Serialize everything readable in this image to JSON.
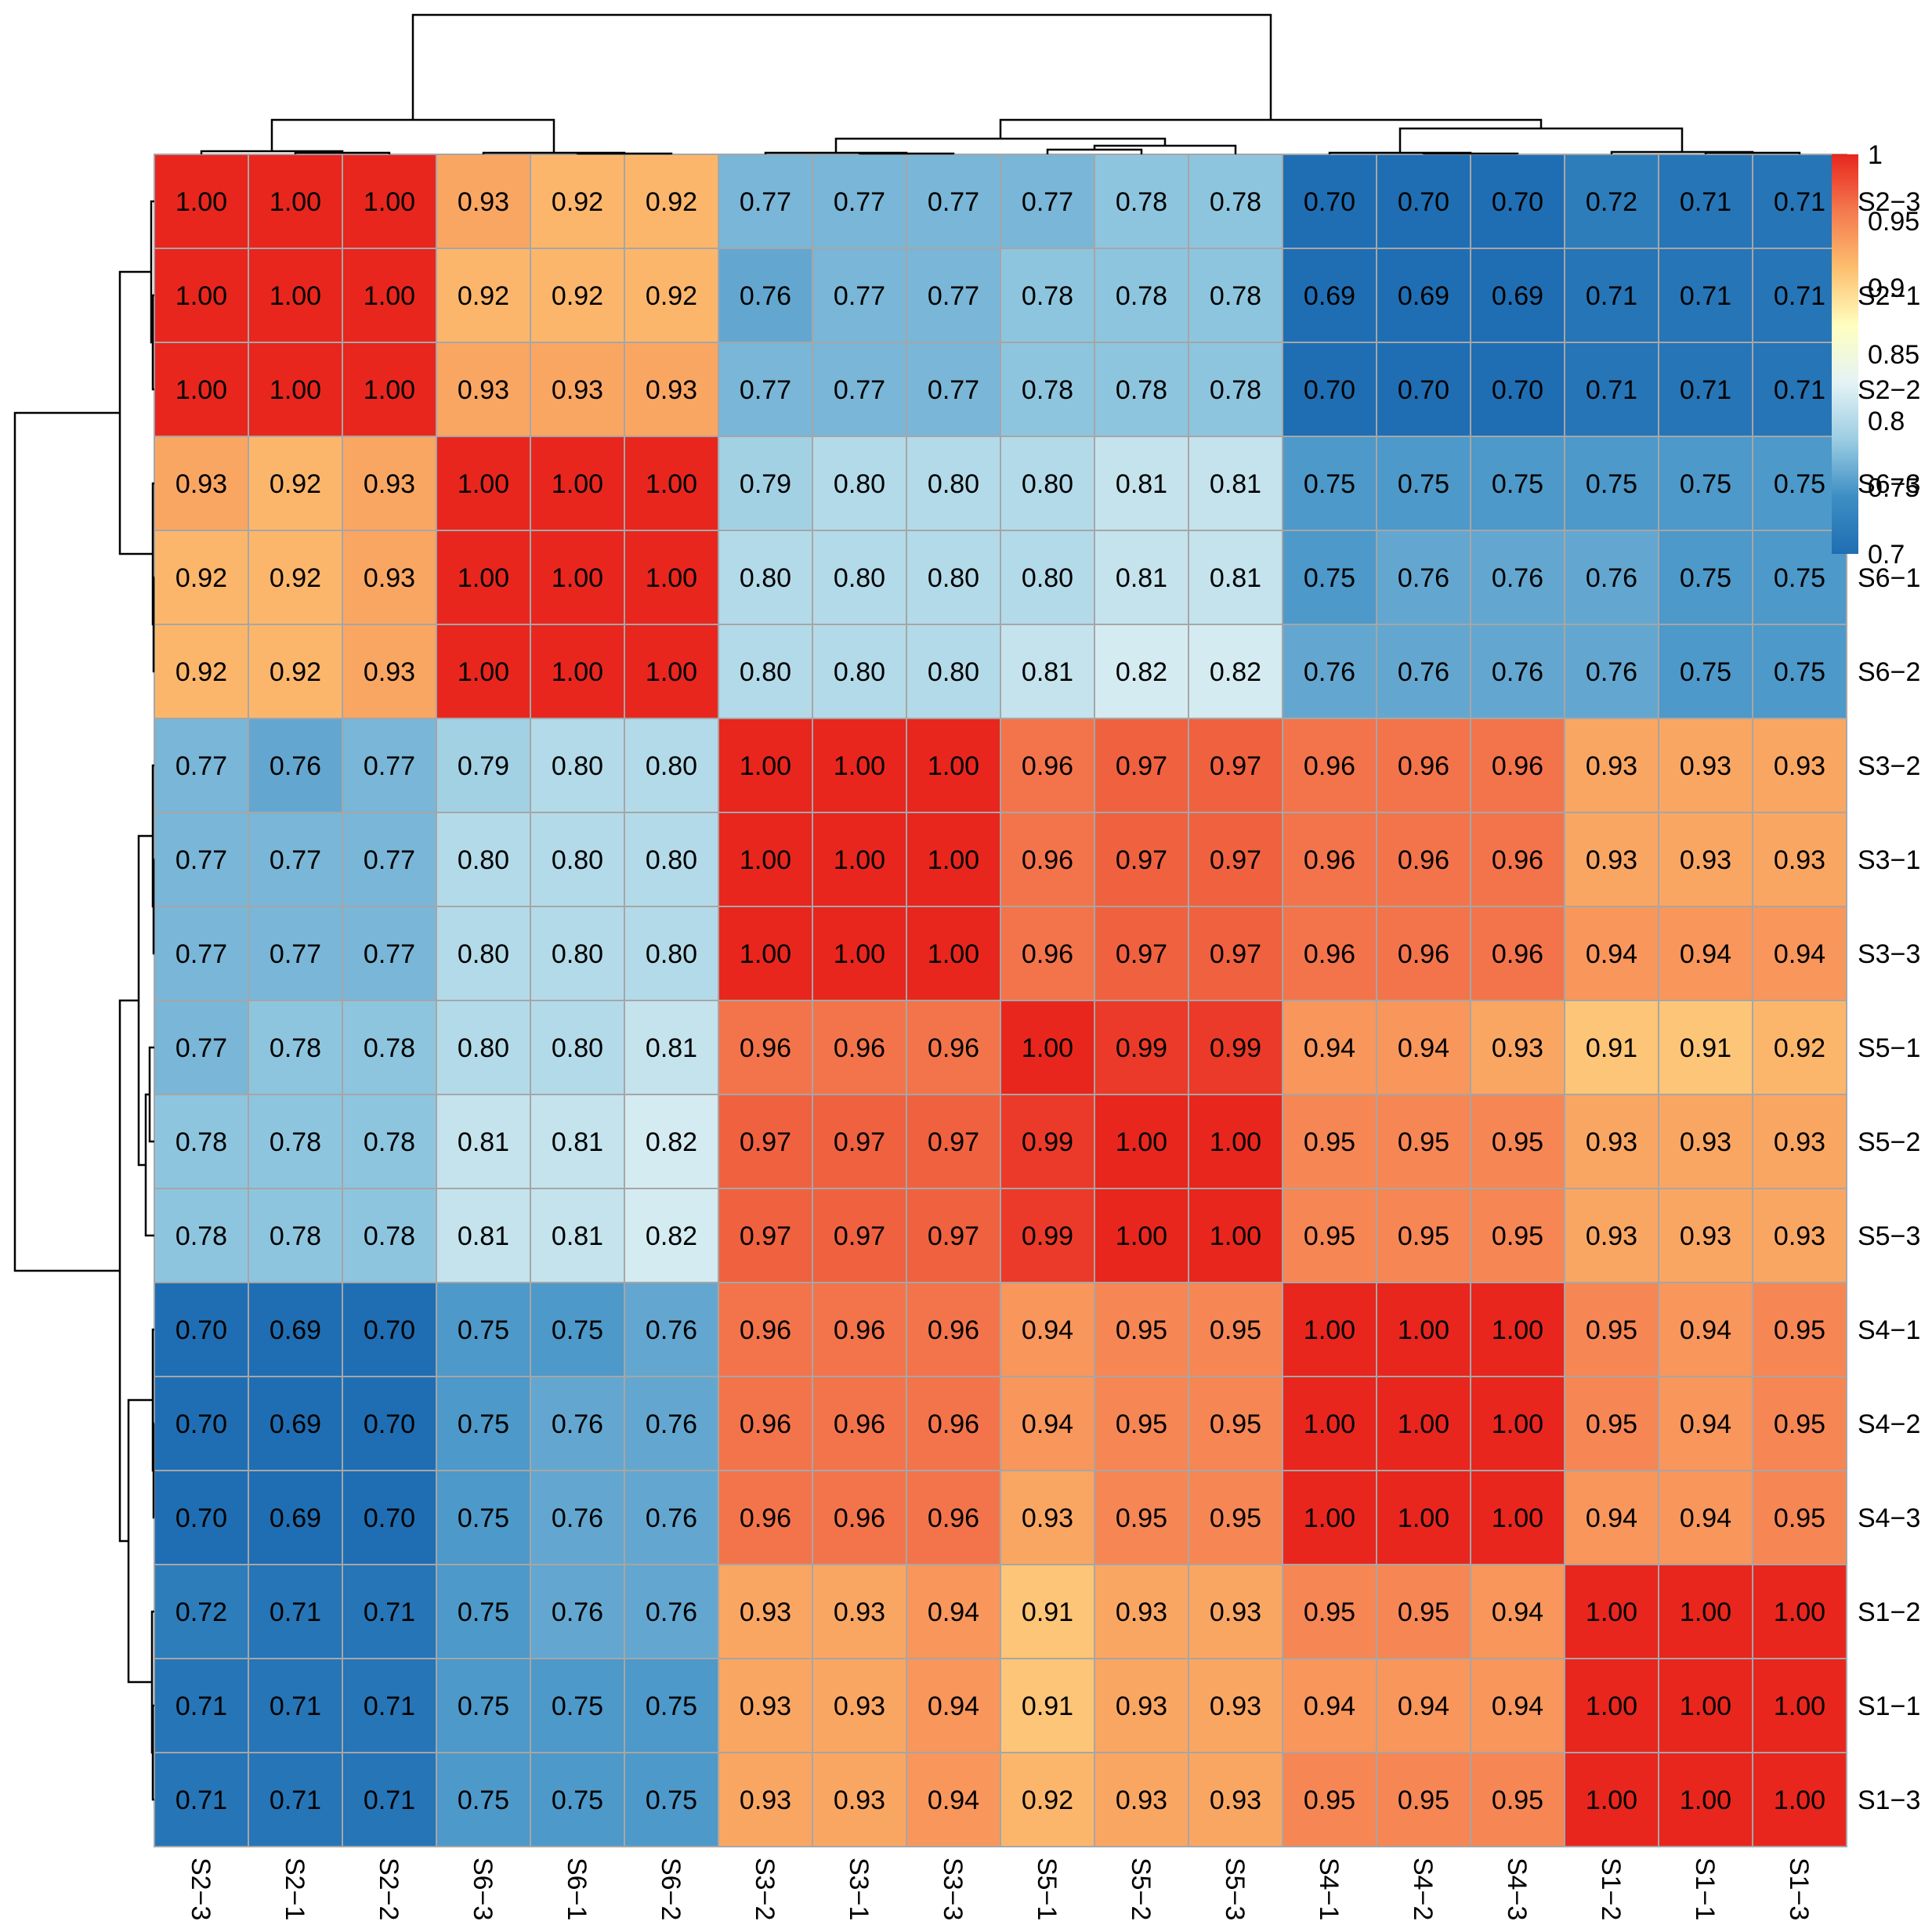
{
  "chart_data": {
    "type": "heatmap",
    "title": "",
    "xlabel": "",
    "ylabel": "",
    "columns": [
      "S2−3",
      "S2−1",
      "S2−2",
      "S6−3",
      "S6−1",
      "S6−2",
      "S3−2",
      "S3−1",
      "S3−3",
      "S5−1",
      "S5−2",
      "S5−3",
      "S4−1",
      "S4−2",
      "S4−3",
      "S1−2",
      "S1−1",
      "S1−3"
    ],
    "rows": [
      "S2−3",
      "S2−1",
      "S2−2",
      "S6−3",
      "S6−1",
      "S6−2",
      "S3−2",
      "S3−1",
      "S3−3",
      "S5−1",
      "S5−2",
      "S5−3",
      "S4−1",
      "S4−2",
      "S4−3",
      "S1−2",
      "S1−1",
      "S1−3"
    ],
    "values": [
      [
        1.0,
        1.0,
        1.0,
        0.93,
        0.92,
        0.92,
        0.77,
        0.77,
        0.77,
        0.77,
        0.78,
        0.78,
        0.7,
        0.7,
        0.7,
        0.72,
        0.71,
        0.71
      ],
      [
        1.0,
        1.0,
        1.0,
        0.92,
        0.92,
        0.92,
        0.76,
        0.77,
        0.77,
        0.78,
        0.78,
        0.78,
        0.69,
        0.69,
        0.69,
        0.71,
        0.71,
        0.71
      ],
      [
        1.0,
        1.0,
        1.0,
        0.93,
        0.93,
        0.93,
        0.77,
        0.77,
        0.77,
        0.78,
        0.78,
        0.78,
        0.7,
        0.7,
        0.7,
        0.71,
        0.71,
        0.71
      ],
      [
        0.93,
        0.92,
        0.93,
        1.0,
        1.0,
        1.0,
        0.79,
        0.8,
        0.8,
        0.8,
        0.81,
        0.81,
        0.75,
        0.75,
        0.75,
        0.75,
        0.75,
        0.75
      ],
      [
        0.92,
        0.92,
        0.93,
        1.0,
        1.0,
        1.0,
        0.8,
        0.8,
        0.8,
        0.8,
        0.81,
        0.81,
        0.75,
        0.76,
        0.76,
        0.76,
        0.75,
        0.75
      ],
      [
        0.92,
        0.92,
        0.93,
        1.0,
        1.0,
        1.0,
        0.8,
        0.8,
        0.8,
        0.81,
        0.82,
        0.82,
        0.76,
        0.76,
        0.76,
        0.76,
        0.75,
        0.75
      ],
      [
        0.77,
        0.76,
        0.77,
        0.79,
        0.8,
        0.8,
        1.0,
        1.0,
        1.0,
        0.96,
        0.97,
        0.97,
        0.96,
        0.96,
        0.96,
        0.93,
        0.93,
        0.93
      ],
      [
        0.77,
        0.77,
        0.77,
        0.8,
        0.8,
        0.8,
        1.0,
        1.0,
        1.0,
        0.96,
        0.97,
        0.97,
        0.96,
        0.96,
        0.96,
        0.93,
        0.93,
        0.93
      ],
      [
        0.77,
        0.77,
        0.77,
        0.8,
        0.8,
        0.8,
        1.0,
        1.0,
        1.0,
        0.96,
        0.97,
        0.97,
        0.96,
        0.96,
        0.96,
        0.94,
        0.94,
        0.94
      ],
      [
        0.77,
        0.78,
        0.78,
        0.8,
        0.8,
        0.81,
        0.96,
        0.96,
        0.96,
        1.0,
        0.99,
        0.99,
        0.94,
        0.94,
        0.93,
        0.91,
        0.91,
        0.92
      ],
      [
        0.78,
        0.78,
        0.78,
        0.81,
        0.81,
        0.82,
        0.97,
        0.97,
        0.97,
        0.99,
        1.0,
        1.0,
        0.95,
        0.95,
        0.95,
        0.93,
        0.93,
        0.93
      ],
      [
        0.78,
        0.78,
        0.78,
        0.81,
        0.81,
        0.82,
        0.97,
        0.97,
        0.97,
        0.99,
        1.0,
        1.0,
        0.95,
        0.95,
        0.95,
        0.93,
        0.93,
        0.93
      ],
      [
        0.7,
        0.69,
        0.7,
        0.75,
        0.75,
        0.76,
        0.96,
        0.96,
        0.96,
        0.94,
        0.95,
        0.95,
        1.0,
        1.0,
        1.0,
        0.95,
        0.94,
        0.95
      ],
      [
        0.7,
        0.69,
        0.7,
        0.75,
        0.76,
        0.76,
        0.96,
        0.96,
        0.96,
        0.94,
        0.95,
        0.95,
        1.0,
        1.0,
        1.0,
        0.95,
        0.94,
        0.95
      ],
      [
        0.7,
        0.69,
        0.7,
        0.75,
        0.76,
        0.76,
        0.96,
        0.96,
        0.96,
        0.93,
        0.95,
        0.95,
        1.0,
        1.0,
        1.0,
        0.94,
        0.94,
        0.95
      ],
      [
        0.72,
        0.71,
        0.71,
        0.75,
        0.76,
        0.76,
        0.93,
        0.93,
        0.94,
        0.91,
        0.93,
        0.93,
        0.95,
        0.95,
        0.94,
        1.0,
        1.0,
        1.0
      ],
      [
        0.71,
        0.71,
        0.71,
        0.75,
        0.75,
        0.75,
        0.93,
        0.93,
        0.94,
        0.91,
        0.93,
        0.93,
        0.94,
        0.94,
        0.94,
        1.0,
        1.0,
        1.0
      ],
      [
        0.71,
        0.71,
        0.71,
        0.75,
        0.75,
        0.75,
        0.93,
        0.93,
        0.94,
        0.92,
        0.93,
        0.93,
        0.95,
        0.95,
        0.95,
        1.0,
        1.0,
        1.0
      ]
    ],
    "value_format_decimals": 2,
    "color_scale": {
      "min": 0.7,
      "max": 1.0,
      "stops": [
        "#1f6eb3",
        "#3d8ec4",
        "#9bcde2",
        "#e4f3f6",
        "#ffffbf",
        "#fdbf6f",
        "#f47a4e",
        "#e8261e"
      ]
    },
    "legend": {
      "placement": "top-right",
      "ticks": [
        1,
        0.95,
        0.9,
        0.85,
        0.8,
        0.75,
        0.7
      ],
      "tick_labels": [
        "1",
        "0.95",
        "0.9",
        "0.85",
        "0.8",
        "0.75",
        "0.7"
      ]
    },
    "dendrogram": {
      "method": "hierarchical",
      "clusters_top_level": [
        [
          "S2−3",
          "S2−1",
          "S2−2",
          "S6−3",
          "S6−1",
          "S6−2"
        ],
        [
          "S3−2",
          "S3−1",
          "S3−3",
          "S5−1",
          "S5−2",
          "S5−3",
          "S4−1",
          "S4−2",
          "S4−3",
          "S1−2",
          "S1−1",
          "S1−3"
        ]
      ]
    },
    "grid": true
  }
}
